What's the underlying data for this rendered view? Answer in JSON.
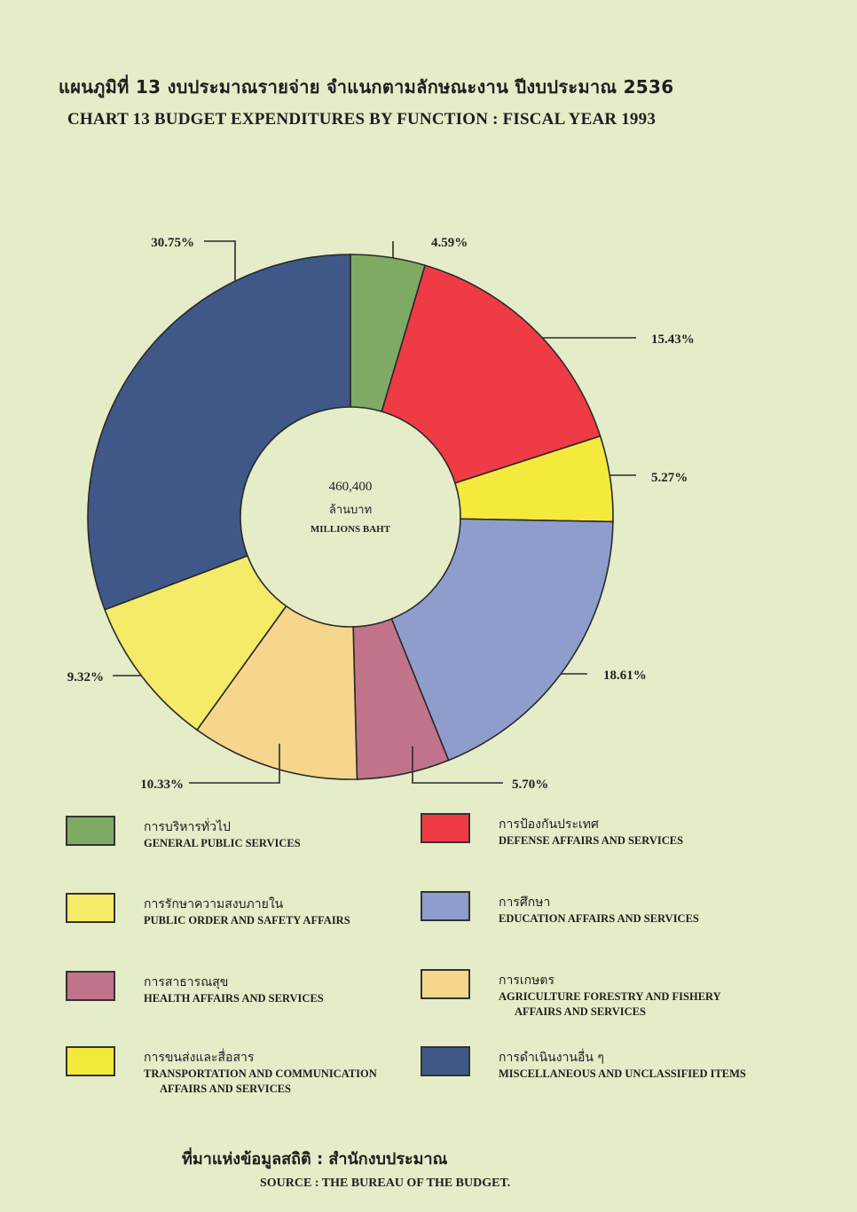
{
  "header": {
    "title_th": "แผนภูมิที่ 13 งบประมาณรายจ่าย จำแนกตามลักษณะงาน ปีงบประมาณ 2536",
    "title_en": "CHART 13 BUDGET EXPENDITURES BY FUNCTION : FISCAL YEAR 1993"
  },
  "chart_data": {
    "type": "pie",
    "donut": true,
    "start_angle_deg": 0,
    "direction": "clockwise",
    "center": {
      "total": "460,400",
      "unit_th": "ล้านบาท",
      "unit_en": "MILLIONS BAHT"
    },
    "slices": [
      {
        "label_en": "GENERAL PUBLIC SERVICES",
        "value": 4.59,
        "value_label": "4.59%",
        "color": "#7faa63"
      },
      {
        "label_en": "DEFENSE AFFAIRS AND SERVICES",
        "value": 15.43,
        "value_label": "15.43%",
        "color": "#ee3b45"
      },
      {
        "label_en": "TRANSPORTATION AND COMMUNICATION AFFAIRS AND SERVICES",
        "value": 5.27,
        "value_label": "5.27%",
        "color": "#f3ea3c"
      },
      {
        "label_en": "EDUCATION AFFAIRS AND SERVICES",
        "value": 18.61,
        "value_label": "18.61%",
        "color": "#8f9dcc"
      },
      {
        "label_en": "HEALTH AFFAIRS AND SERVICES",
        "value": 5.7,
        "value_label": "5.70%",
        "color": "#c07389"
      },
      {
        "label_en": "AGRICULTURE FORESTRY AND FISHERY AFFAIRS AND SERVICES",
        "value": 10.33,
        "value_label": "10.33%",
        "color": "#f5d68c"
      },
      {
        "label_en": "PUBLIC ORDER AND SAFETY AFFAIRS",
        "value": 9.32,
        "value_label": "9.32%",
        "color": "#f4ec68"
      },
      {
        "label_en": "MISCELLANEOUS AND UNCLASSIFIED ITEMS",
        "value": 30.75,
        "value_label": "30.75%",
        "color": "#3f5887"
      }
    ]
  },
  "legend": [
    {
      "th": "การบริหารทั่วไป",
      "en": "GENERAL PUBLIC SERVICES",
      "en2": "",
      "color": "#7faa63"
    },
    {
      "th": "การป้องกันประเทศ",
      "en": "DEFENSE AFFAIRS AND SERVICES",
      "en2": "",
      "color": "#ee3b45"
    },
    {
      "th": "การรักษาความสงบภายใน",
      "en": "PUBLIC ORDER AND SAFETY AFFAIRS",
      "en2": "",
      "color": "#f4ec68"
    },
    {
      "th": "การศึกษา",
      "en": "EDUCATION AFFAIRS AND SERVICES",
      "en2": "",
      "color": "#8f9dcc"
    },
    {
      "th": "การสาธารณสุข",
      "en": "HEALTH AFFAIRS AND SERVICES",
      "en2": "",
      "color": "#c07389"
    },
    {
      "th": "การเกษตร",
      "en": "AGRICULTURE FORESTRY AND FISHERY",
      "en2": "AFFAIRS AND SERVICES",
      "color": "#f5d68c"
    },
    {
      "th": "การขนส่งและสื่อสาร",
      "en": "TRANSPORTATION AND COMMUNICATION",
      "en2": "AFFAIRS AND SERVICES",
      "color": "#f3ea3c"
    },
    {
      "th": "การดำเนินงานอื่น ๆ",
      "en": "MISCELLANEOUS AND UNCLASSIFIED ITEMS",
      "en2": "",
      "color": "#3f5887"
    }
  ],
  "source": {
    "th": "ที่มาแห่งข้อมูลสถิติ : สำนักงบประมาณ",
    "en": "SOURCE : THE BUREAU OF THE BUDGET."
  }
}
